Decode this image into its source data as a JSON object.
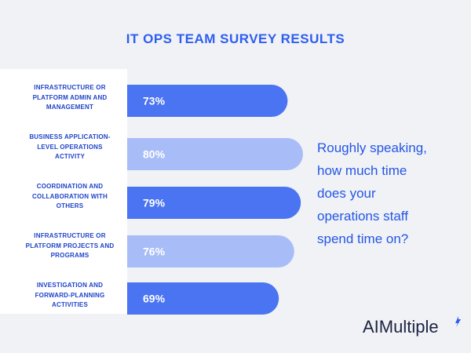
{
  "colors": {
    "accent": "#2d5ef0",
    "bar_dark": "#4a74f1",
    "bar_light": "#a8bdf8",
    "label_text": "#1f43c9",
    "question_text": "#2456e6",
    "bar_value_text": "#ffffff"
  },
  "page_title": "IT OPS TEAM SURVEY RESULTS",
  "question": "Roughly speaking,\nhow much time\ndoes your\noperations staff\nspend time on?",
  "logo": {
    "prefix": "AI",
    "suffix": "Multiple"
  },
  "chart_data": {
    "type": "bar",
    "orientation": "horizontal",
    "title": "IT OPS TEAM SURVEY RESULTS",
    "categories": [
      "Infrastructure or platform admin and management",
      "Business application-level operations activity",
      "Coordination and collaboration with others",
      "Infrastructure or platform projects and programs",
      "Investigation and forward-planning activities"
    ],
    "category_lines": [
      "INFRASTRUCTURE OR\nPLATFORM ADMIN AND\nMANAGEMENT",
      "BUSINESS APPLICATION-\nLEVEL OPERATIONS\nACTIVITY",
      "COORDINATION AND\nCOLLABORATION WITH\nOTHERS",
      "INFRASTRUCTURE OR\nPLATFORM PROJECTS AND\nPROGRAMS",
      "INVESTIGATION AND\nFORWARD-PLANNING\nACTIVITIES"
    ],
    "values": [
      73,
      80,
      79,
      76,
      69
    ],
    "value_labels": [
      "73%",
      "80%",
      "79%",
      "76%",
      "69%"
    ],
    "bar_shade": [
      "dark",
      "light",
      "dark",
      "light",
      "dark"
    ],
    "xlabel": "",
    "ylabel": "",
    "legend": "none"
  }
}
